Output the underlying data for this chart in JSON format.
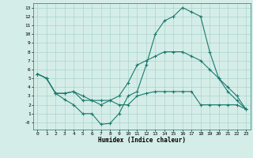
{
  "title": "",
  "xlabel": "Humidex (Indice chaleur)",
  "ylabel": "",
  "bg_color": "#d5ede8",
  "line_color": "#1a7a6e",
  "grid_color": "#aad4cc",
  "xlim": [
    -0.5,
    23.5
  ],
  "ylim": [
    -0.8,
    13.5
  ],
  "xticks": [
    0,
    1,
    2,
    3,
    4,
    5,
    6,
    7,
    8,
    9,
    10,
    11,
    12,
    13,
    14,
    15,
    16,
    17,
    18,
    19,
    20,
    21,
    22,
    23
  ],
  "yticks": [
    0,
    1,
    2,
    3,
    4,
    5,
    6,
    7,
    8,
    9,
    10,
    11,
    12,
    13
  ],
  "ytick_labels": [
    "-0",
    "1",
    "2",
    "3",
    "4",
    "5",
    "6",
    "7",
    "8",
    "9",
    "10",
    "11",
    "12",
    "13"
  ],
  "line1_x": [
    0,
    1,
    2,
    3,
    4,
    5,
    6,
    7,
    8,
    9,
    10,
    11,
    12,
    13,
    14,
    15,
    16,
    17,
    18,
    19,
    20,
    21,
    22,
    23
  ],
  "line1_y": [
    5.5,
    5.0,
    3.3,
    2.6,
    2.0,
    1.0,
    1.0,
    -0.2,
    -0.1,
    1.0,
    3.0,
    3.5,
    6.5,
    10.0,
    11.5,
    12.0,
    13.0,
    12.5,
    12.0,
    8.0,
    5.0,
    3.5,
    2.5,
    1.5
  ],
  "line2_x": [
    0,
    1,
    2,
    3,
    4,
    5,
    6,
    7,
    8,
    9,
    10,
    11,
    12,
    13,
    14,
    15,
    16,
    17,
    18,
    19,
    20,
    21,
    22,
    23
  ],
  "line2_y": [
    5.5,
    5.0,
    3.3,
    3.3,
    3.5,
    3.0,
    2.5,
    2.5,
    2.5,
    3.0,
    4.5,
    6.5,
    7.0,
    7.5,
    8.0,
    8.0,
    8.0,
    7.5,
    7.0,
    6.0,
    5.0,
    4.0,
    3.0,
    1.5
  ],
  "line3_x": [
    0,
    1,
    2,
    3,
    4,
    5,
    6,
    7,
    8,
    9,
    10,
    11,
    12,
    13,
    14,
    15,
    16,
    17,
    18,
    19,
    20,
    21,
    22,
    23
  ],
  "line3_y": [
    5.5,
    5.0,
    3.3,
    3.3,
    3.5,
    2.5,
    2.5,
    2.0,
    2.5,
    2.0,
    2.0,
    3.0,
    3.3,
    3.5,
    3.5,
    3.5,
    3.5,
    3.5,
    2.0,
    2.0,
    2.0,
    2.0,
    2.0,
    1.5
  ]
}
